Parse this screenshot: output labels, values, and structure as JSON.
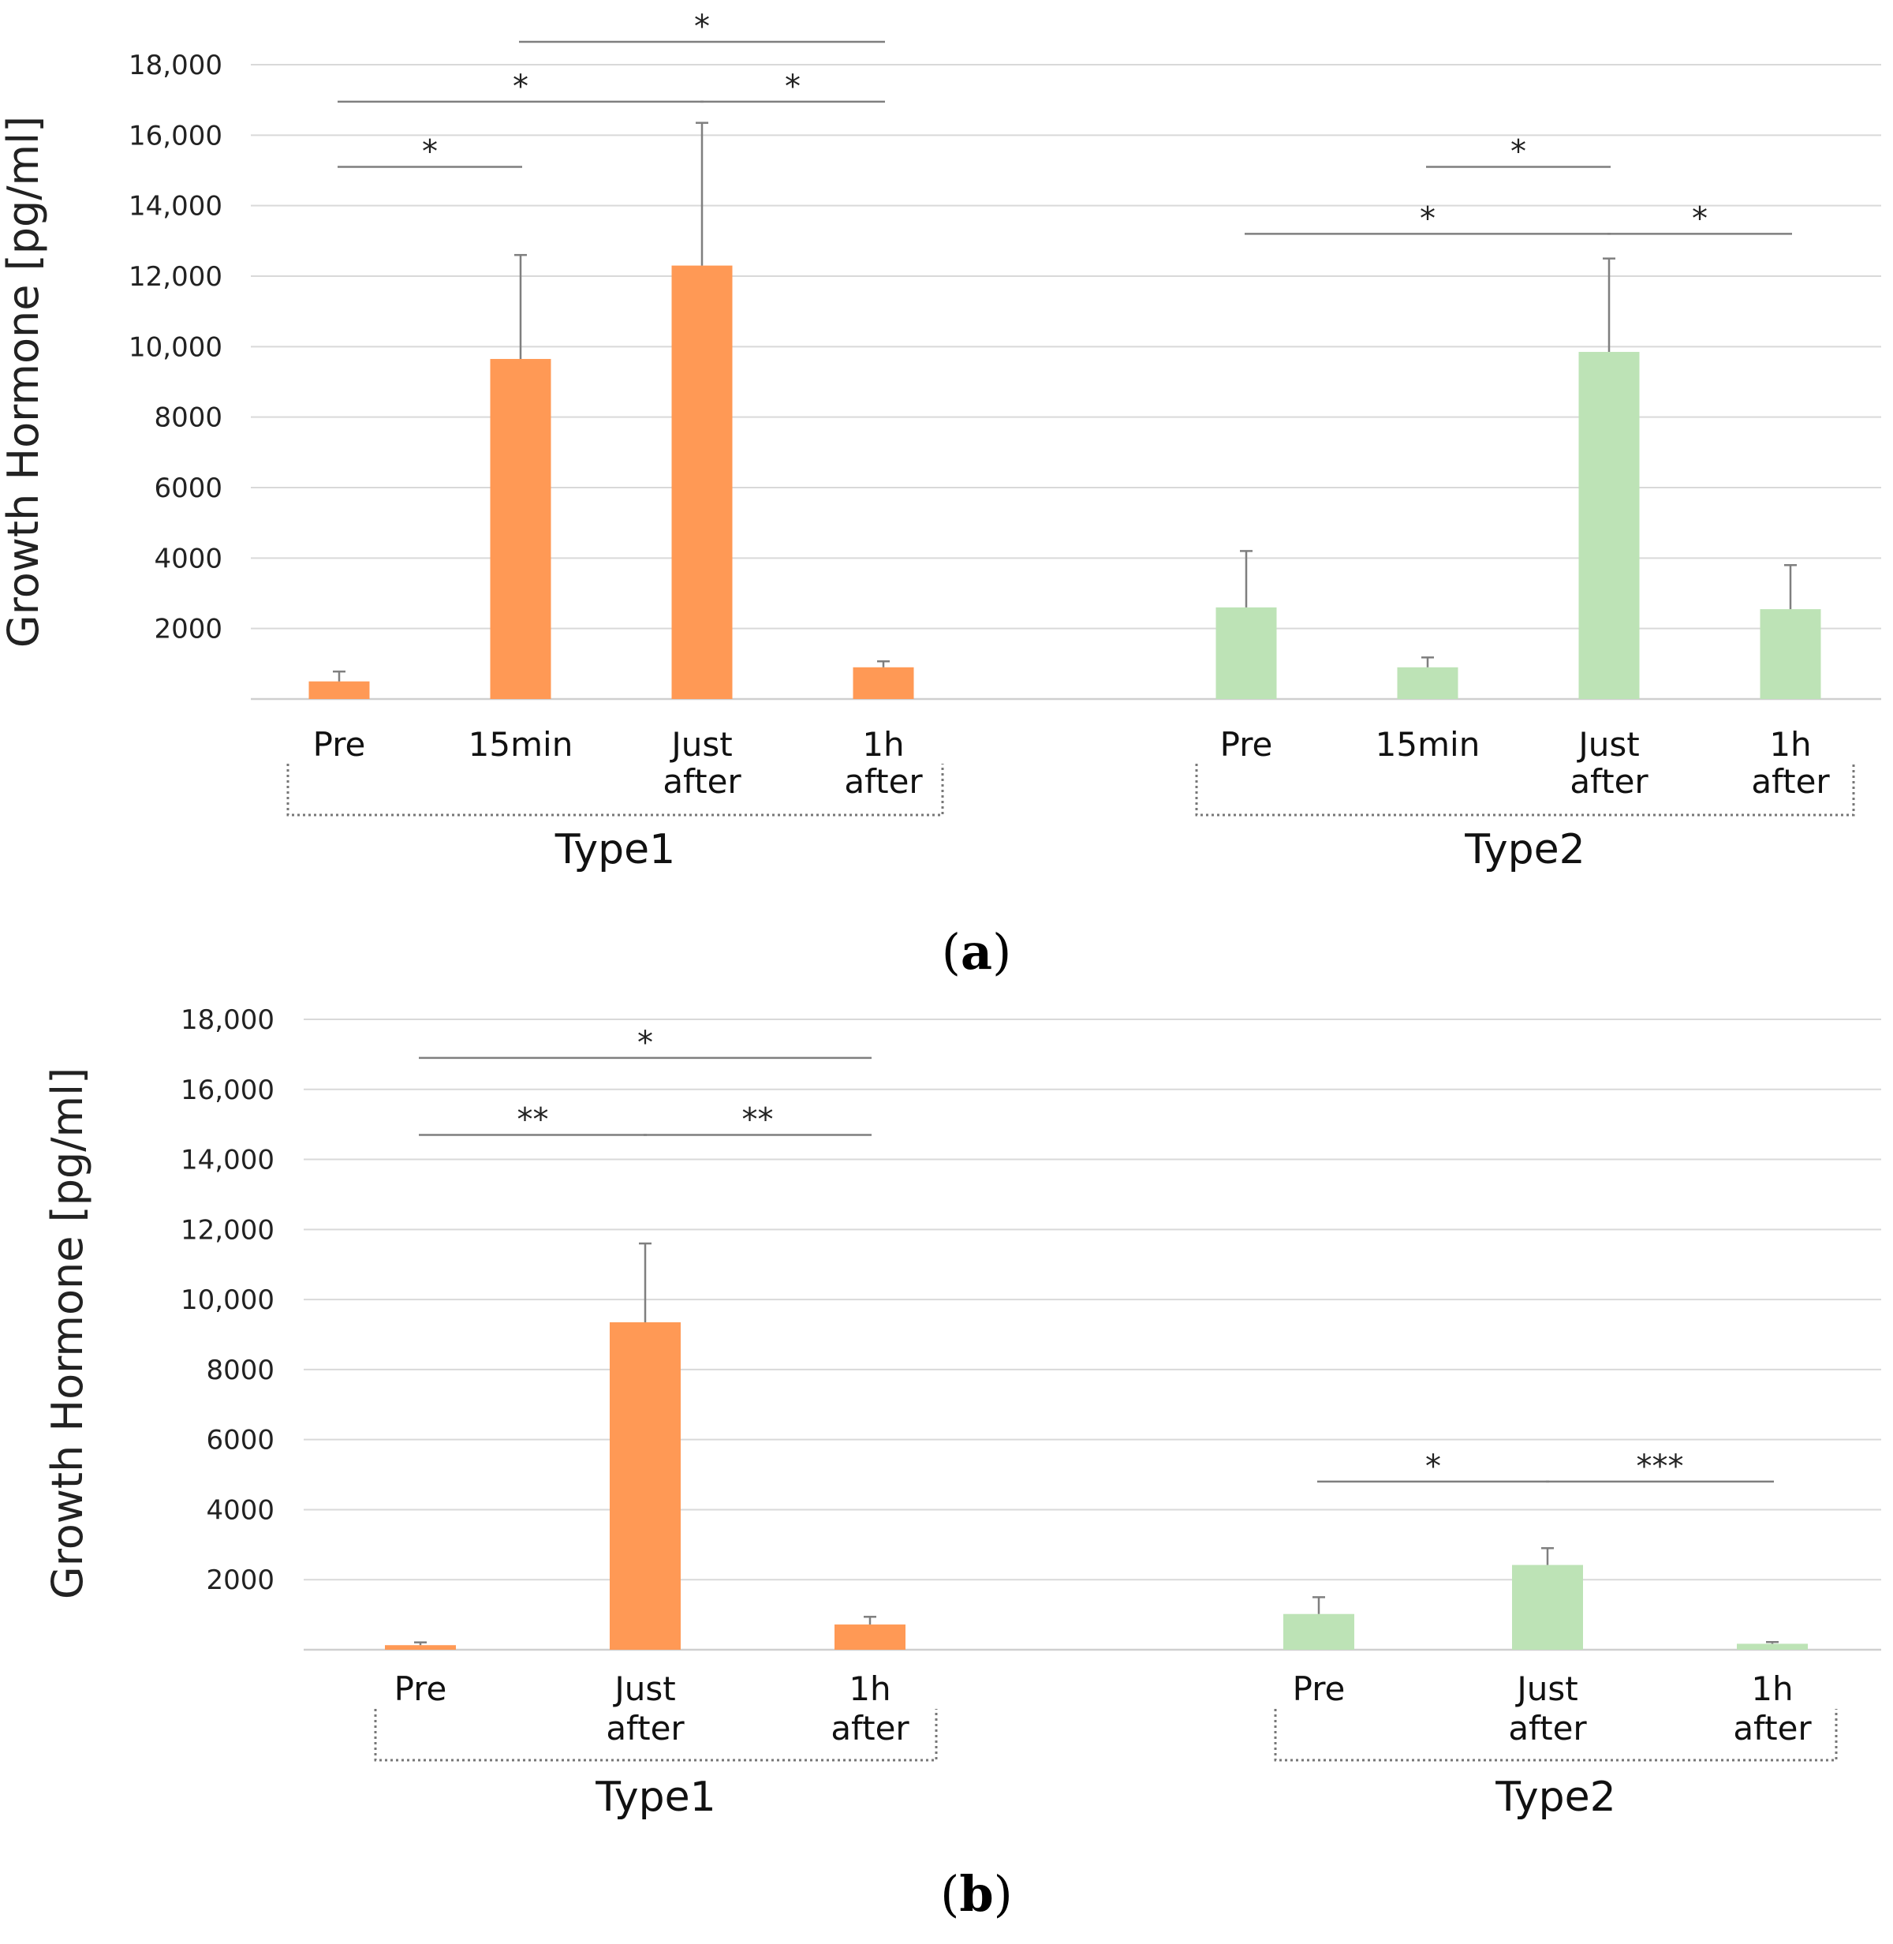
{
  "chart_data": [
    {
      "panel_label": "a",
      "type": "bar",
      "ylabel": "Growth Hormone [pg/ml]",
      "ylim": [
        0,
        18000
      ],
      "yticks": [
        2000,
        4000,
        6000,
        8000,
        10000,
        12000,
        14000,
        16000,
        18000
      ],
      "ytick_labels": [
        "2000",
        "4000",
        "6000",
        "8000",
        "10,000",
        "12,000",
        "14,000",
        "16,000",
        "18,000"
      ],
      "grid": true,
      "colors": {
        "Type1": "#FF9955",
        "Type2": "#BDE3B6",
        "error": "#7f7f7f",
        "grid": "#d9d9d9"
      },
      "groups": [
        {
          "name": "Type1",
          "categories": [
            [
              "Pre"
            ],
            [
              "15min"
            ],
            [
              "Just",
              "after"
            ],
            [
              "1h",
              "after"
            ]
          ],
          "values": [
            500,
            9650,
            12300,
            900
          ],
          "errors": [
            280,
            2950,
            4050,
            170
          ]
        },
        {
          "name": "Type2",
          "categories": [
            [
              "Pre"
            ],
            [
              "15min"
            ],
            [
              "Just",
              "after"
            ],
            [
              "1h",
              "after"
            ]
          ],
          "values": [
            2600,
            900,
            9850,
            2550
          ],
          "errors": [
            1600,
            280,
            2650,
            1250
          ]
        }
      ],
      "significance": [
        {
          "group": 0,
          "from": 0,
          "to": 1,
          "y": 15100,
          "label": "*"
        },
        {
          "group": 0,
          "from": 0,
          "to": 2,
          "y": 16950,
          "label": "*"
        },
        {
          "group": 0,
          "from": 2,
          "to": 3,
          "y": 16950,
          "label": "*"
        },
        {
          "group": 0,
          "from": 1,
          "to": 3,
          "y": 18650,
          "label": "*"
        },
        {
          "group": 1,
          "from": 1,
          "to": 2,
          "y": 15100,
          "label": "*"
        },
        {
          "group": 1,
          "from": 0,
          "to": 2,
          "y": 13200,
          "label": "*"
        },
        {
          "group": 1,
          "from": 2,
          "to": 3,
          "y": 13200,
          "label": "*"
        }
      ]
    },
    {
      "panel_label": "b",
      "type": "bar",
      "ylabel": "Growth Hormone [pg/ml]",
      "ylim": [
        0,
        18000
      ],
      "yticks": [
        2000,
        4000,
        6000,
        8000,
        10000,
        12000,
        14000,
        16000,
        18000
      ],
      "ytick_labels": [
        "2000",
        "4000",
        "6000",
        "8000",
        "10,000",
        "12,000",
        "14,000",
        "16,000",
        "18,000"
      ],
      "grid": true,
      "colors": {
        "Type1": "#FF9955",
        "Type2": "#BDE3B6",
        "error": "#7f7f7f",
        "grid": "#d9d9d9"
      },
      "groups": [
        {
          "name": "Type1",
          "categories": [
            [
              "Pre"
            ],
            [
              "Just",
              "after"
            ],
            [
              "1h",
              "after"
            ]
          ],
          "values": [
            130,
            9350,
            720
          ],
          "errors": [
            80,
            2250,
            220
          ]
        },
        {
          "name": "Type2",
          "categories": [
            [
              "Pre"
            ],
            [
              "Just",
              "after"
            ],
            [
              "1h",
              "after"
            ]
          ],
          "values": [
            1020,
            2420,
            170
          ],
          "errors": [
            480,
            480,
            50
          ]
        }
      ],
      "significance": [
        {
          "group": 0,
          "from": 0,
          "to": 2,
          "y": 16900,
          "label": "*"
        },
        {
          "group": 0,
          "from": 0,
          "to": 1,
          "y": 14700,
          "label": "**"
        },
        {
          "group": 0,
          "from": 1,
          "to": 2,
          "y": 14700,
          "label": "**"
        },
        {
          "group": 1,
          "from": 0,
          "to": 1,
          "y": 4800,
          "label": "*"
        },
        {
          "group": 1,
          "from": 1,
          "to": 2,
          "y": 4800,
          "label": "***"
        }
      ]
    }
  ]
}
